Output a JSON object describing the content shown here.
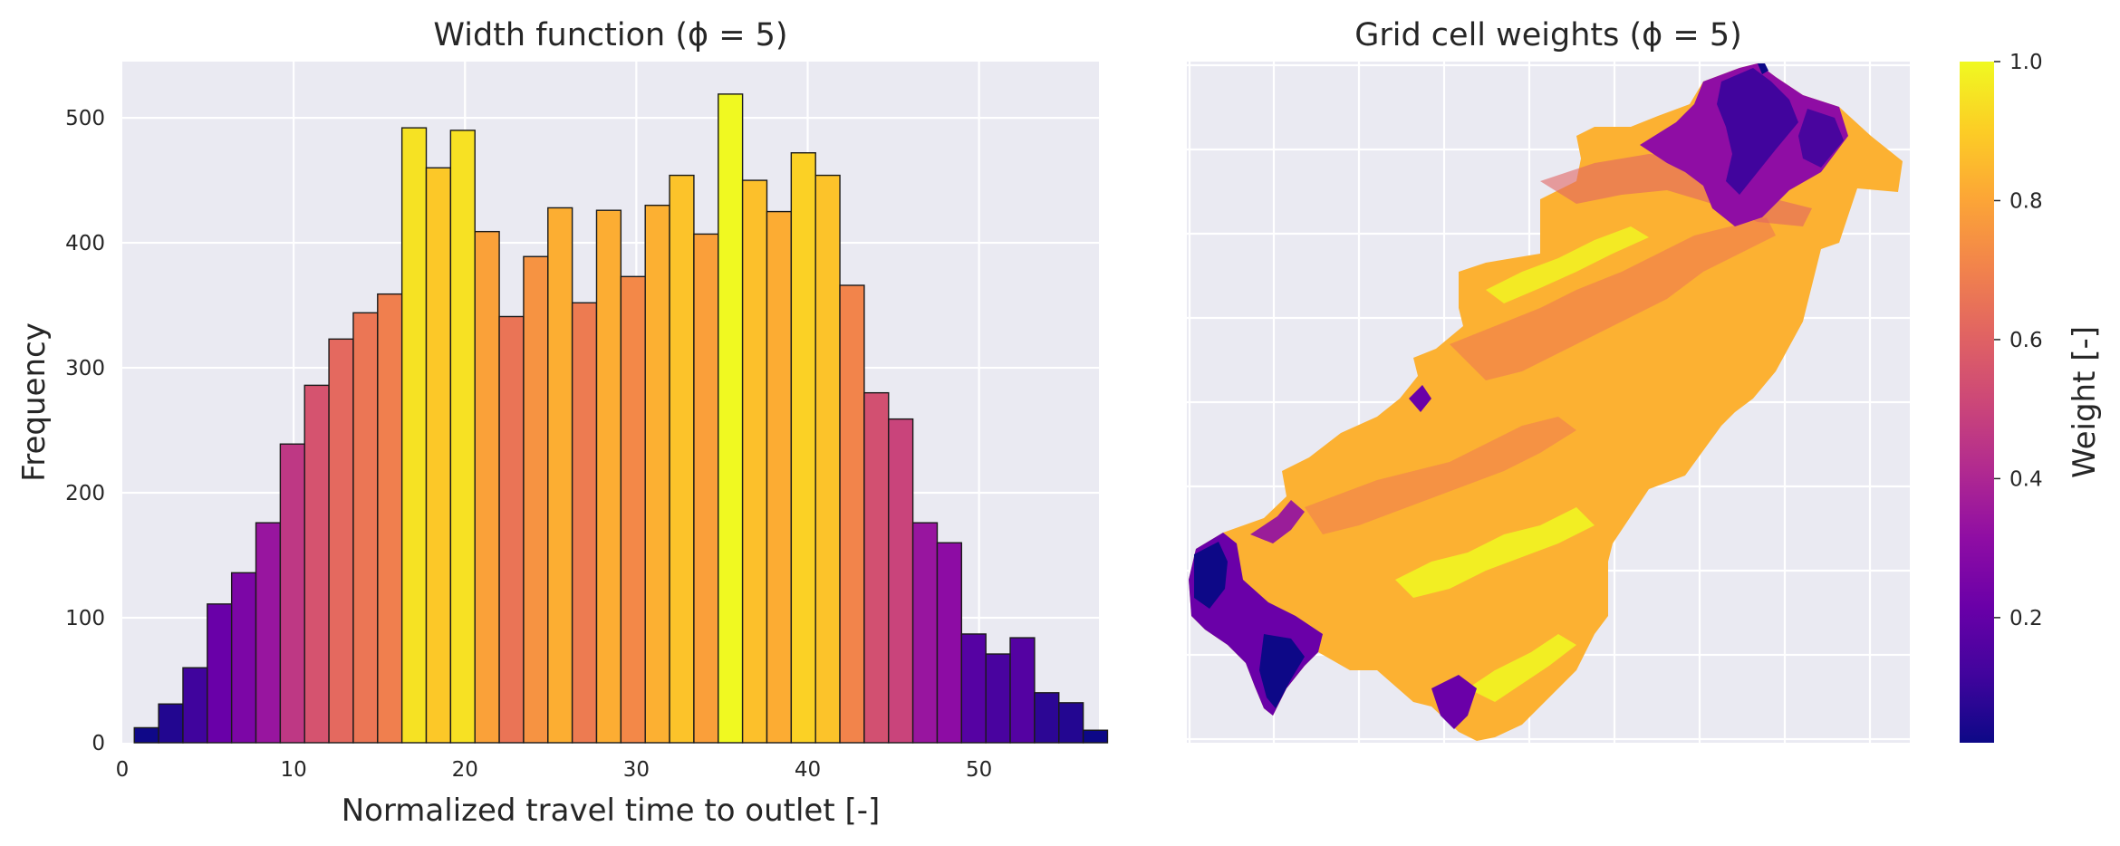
{
  "chart_data": [
    {
      "type": "bar",
      "title": "Width function (ϕ = 5)",
      "xlabel": "Normalized travel time to outlet [-]",
      "ylabel": "Frequency",
      "xlim": [
        0,
        57
      ],
      "ylim": [
        0,
        545
      ],
      "xticks": [
        "0",
        "10",
        "20",
        "30",
        "40",
        "50"
      ],
      "yticks": [
        "0",
        "100",
        "200",
        "300",
        "400",
        "500"
      ],
      "grid": true,
      "colormap": "plasma",
      "bin_start": 0.7,
      "bin_width": 1.42,
      "values": [
        12,
        31,
        60,
        111,
        136,
        176,
        239,
        286,
        323,
        344,
        359,
        492,
        460,
        490,
        409,
        341,
        389,
        428,
        352,
        426,
        373,
        430,
        454,
        407,
        519,
        450,
        425,
        472,
        454,
        366,
        280,
        259,
        176,
        160,
        87,
        71,
        84,
        40,
        32,
        10
      ]
    },
    {
      "type": "heatmap",
      "title": "Grid cell weights (ϕ = 5)",
      "colormap": "plasma",
      "colorbar_label": "Weight [-]",
      "colorbar_ticks": [
        "0.2",
        "0.4",
        "0.6",
        "0.8",
        "1.0"
      ],
      "colorbar_range": [
        0.02,
        1.0
      ],
      "grid": true
    }
  ],
  "colors": {
    "axes_bg": "#eaeaf2",
    "grid": "#ffffff",
    "text": "#262626",
    "bar_edge": "#1a1a1a"
  }
}
